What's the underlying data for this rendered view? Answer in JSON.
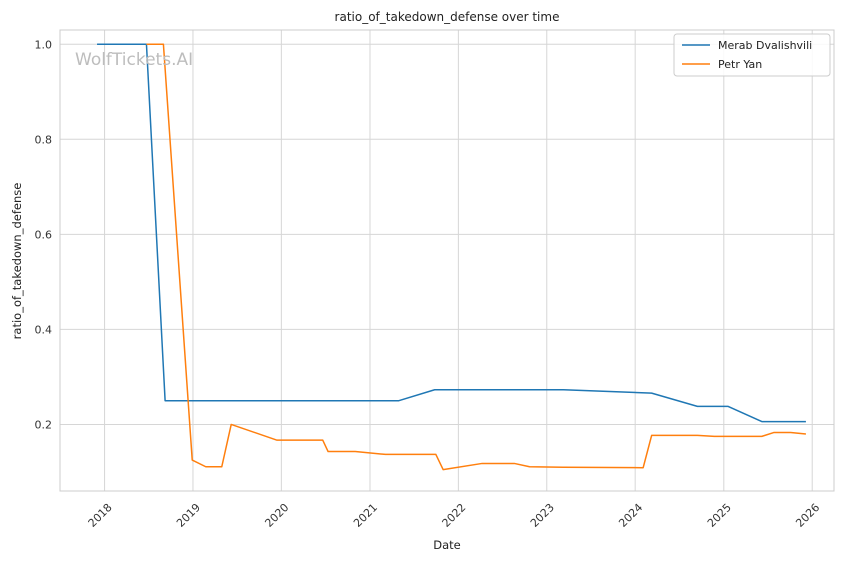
{
  "chart_data": {
    "type": "line",
    "title": "ratio_of_takedown_defense over time",
    "xlabel": "Date",
    "ylabel": "ratio_of_takedown_defense",
    "watermark": "WolfTickets.AI",
    "xlim": [
      "2017-07-01",
      "2026-04-01"
    ],
    "ylim": [
      0.06,
      1.03
    ],
    "x_ticks": [
      "2018",
      "2019",
      "2020",
      "2021",
      "2022",
      "2023",
      "2024",
      "2025",
      "2026"
    ],
    "y_ticks": [
      "0.2",
      "0.4",
      "0.6",
      "0.8",
      "1.0"
    ],
    "grid": true,
    "legend_position": "top-right",
    "series": [
      {
        "name": "Merab Dvalishvili",
        "color": "#1f77b4",
        "points": [
          [
            "2017-12-01",
            1.0
          ],
          [
            "2018-06-23",
            1.0
          ],
          [
            "2018-09-08",
            0.25
          ],
          [
            "2021-04-30",
            0.25
          ],
          [
            "2021-09-25",
            0.273
          ],
          [
            "2023-03-11",
            0.273
          ],
          [
            "2024-03-09",
            0.266
          ],
          [
            "2024-09-14",
            0.238
          ],
          [
            "2025-01-19",
            0.238
          ],
          [
            "2025-06-07",
            0.206
          ],
          [
            "2025-12-06",
            0.206
          ]
        ]
      },
      {
        "name": "Petr Yan",
        "color": "#ff7f0e",
        "points": [
          [
            "2018-06-23",
            1.0
          ],
          [
            "2018-09-01",
            1.0
          ],
          [
            "2018-12-29",
            0.125
          ],
          [
            "2019-02-23",
            0.111
          ],
          [
            "2019-04-30",
            0.111
          ],
          [
            "2019-06-08",
            0.2
          ],
          [
            "2019-12-14",
            0.167
          ],
          [
            "2020-06-20",
            0.167
          ],
          [
            "2020-07-12",
            0.143
          ],
          [
            "2020-11-01",
            0.143
          ],
          [
            "2021-03-06",
            0.137
          ],
          [
            "2021-09-30",
            0.137
          ],
          [
            "2021-10-30",
            0.105
          ],
          [
            "2022-04-09",
            0.118
          ],
          [
            "2022-08-20",
            0.118
          ],
          [
            "2022-10-22",
            0.111
          ],
          [
            "2023-03-11",
            0.11
          ],
          [
            "2024-02-03",
            0.109
          ],
          [
            "2024-03-09",
            0.177
          ],
          [
            "2024-09-14",
            0.177
          ],
          [
            "2024-11-23",
            0.175
          ],
          [
            "2025-06-07",
            0.175
          ],
          [
            "2025-07-26",
            0.183
          ],
          [
            "2025-10-04",
            0.183
          ],
          [
            "2025-12-06",
            0.18
          ]
        ]
      }
    ]
  }
}
